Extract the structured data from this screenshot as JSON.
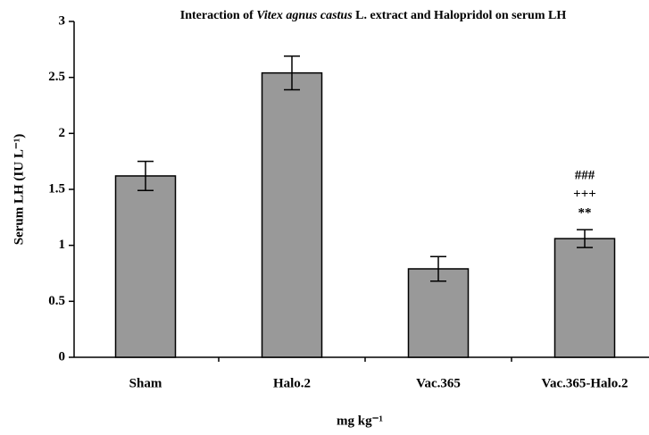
{
  "chart_data": {
    "type": "bar",
    "title_parts": [
      "Interaction of",
      "Vitex agnus castus",
      "L. extract and Halopridol on serum LH"
    ],
    "y_label": "Serum LH (IU L⁻¹)",
    "x_label": "mg kg⁻¹",
    "categories": [
      "Sham",
      "Halo.2",
      "Vac.365",
      "Vac.365-Halo.2"
    ],
    "values": [
      1.62,
      2.54,
      0.79,
      1.06
    ],
    "errors": [
      0.13,
      0.15,
      0.11,
      0.08
    ],
    "color": "#999999",
    "ylim": [
      0,
      3
    ],
    "yticks": [
      0,
      0.5,
      1,
      1.5,
      2,
      2.5,
      3
    ],
    "annotations": [
      "###",
      "+++",
      "**"
    ]
  }
}
